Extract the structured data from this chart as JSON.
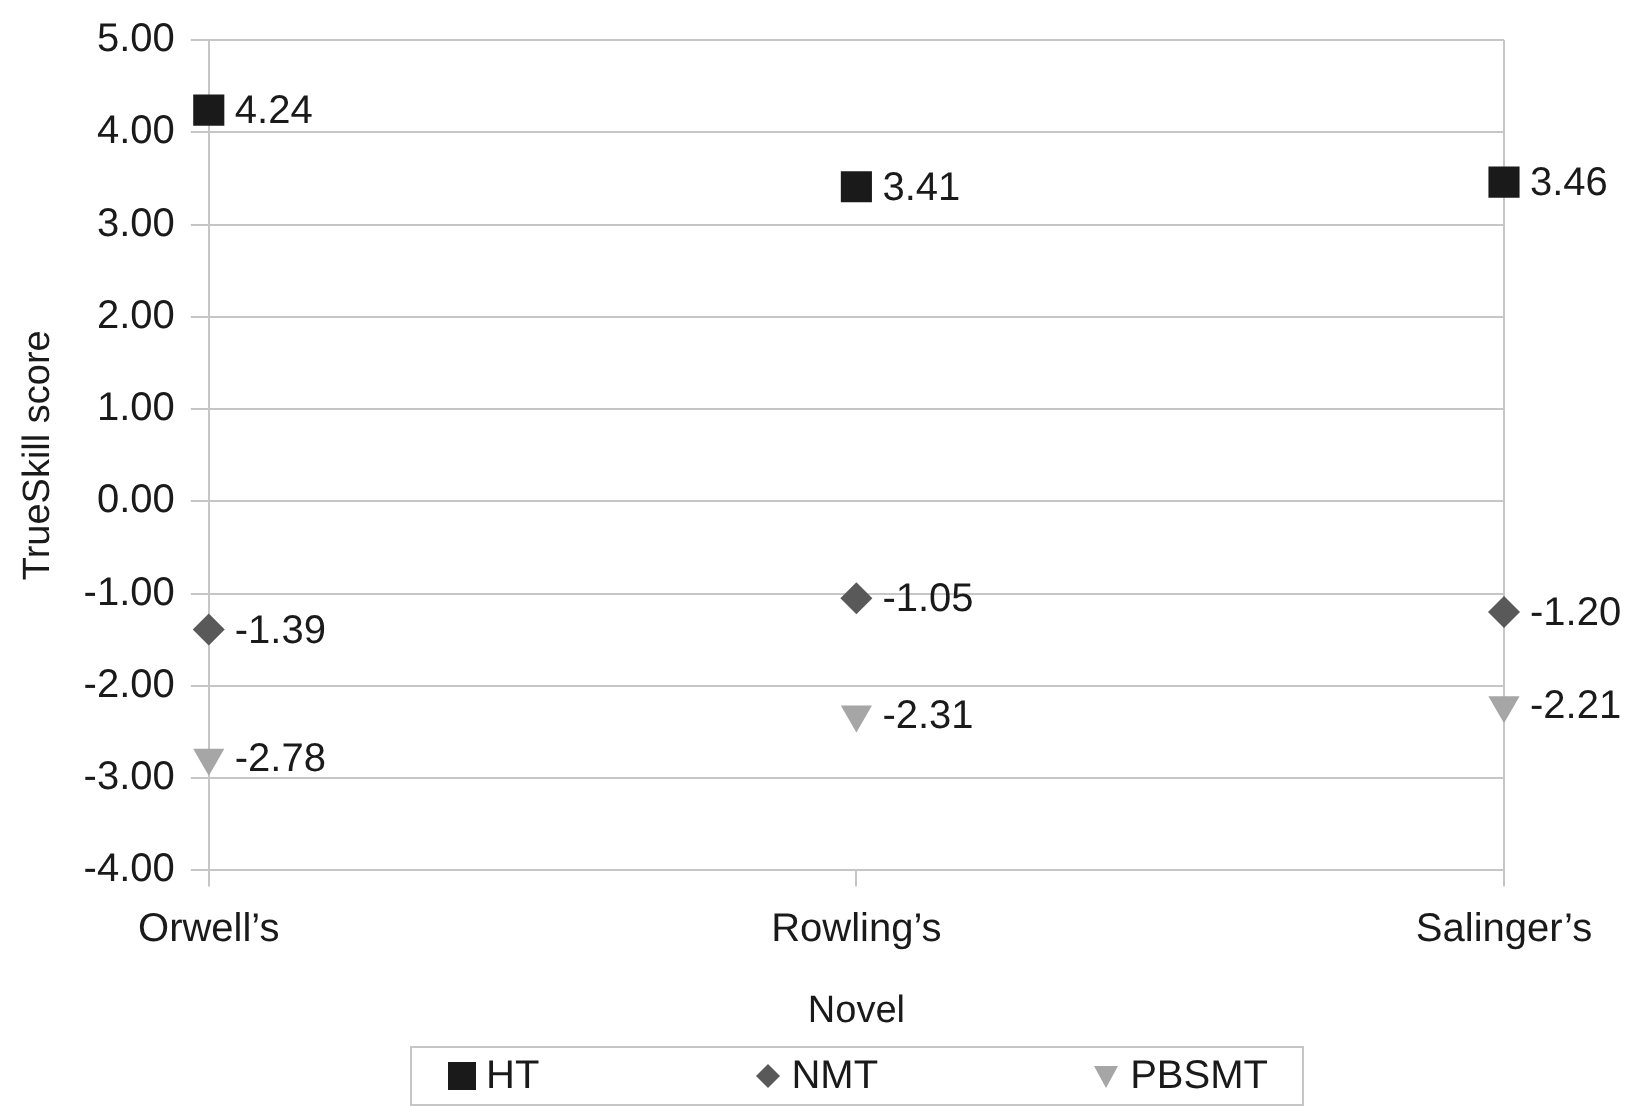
{
  "chart_data": {
    "type": "scatter",
    "xlabel": "Novel",
    "ylabel": "TrueSkill score",
    "categories": [
      "Orwell’s",
      "Rowling’s",
      "Salinger’s"
    ],
    "series": [
      {
        "name": "HT",
        "color": "#1a1a1a",
        "marker": "square",
        "values": [
          4.24,
          3.41,
          3.46
        ],
        "value_labels": [
          "4.24",
          "3.41",
          "3.46"
        ]
      },
      {
        "name": "NMT",
        "color": "#595959",
        "marker": "diamond",
        "values": [
          -1.39,
          -1.05,
          -1.2
        ],
        "value_labels": [
          "-1.39",
          "-1.05",
          "-1.20"
        ]
      },
      {
        "name": "PBSMT",
        "color": "#a6a6a6",
        "marker": "triangle",
        "values": [
          -2.78,
          -2.31,
          -2.21
        ],
        "value_labels": [
          "-2.78",
          "-2.31",
          "-2.21"
        ]
      }
    ],
    "ylim": [
      -4,
      5
    ],
    "yticks": [
      {
        "value": -4,
        "label": "-4.00"
      },
      {
        "value": -3,
        "label": "-3.00"
      },
      {
        "value": -2,
        "label": "-2.00"
      },
      {
        "value": -1,
        "label": "-1.00"
      },
      {
        "value": 0,
        "label": "0.00"
      },
      {
        "value": 1,
        "label": "1.00"
      },
      {
        "value": 2,
        "label": "2.00"
      },
      {
        "value": 3,
        "label": "3.00"
      },
      {
        "value": 4,
        "label": "4.00"
      },
      {
        "value": 5,
        "label": "5.00"
      }
    ],
    "grid": "y",
    "legend": "bottom"
  }
}
